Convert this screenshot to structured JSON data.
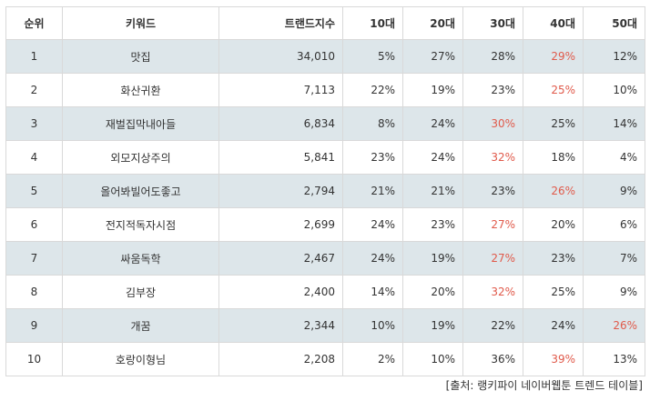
{
  "table": {
    "headers": [
      "순위",
      "키워드",
      "트랜드지수",
      "10대",
      "20대",
      "30대",
      "40대",
      "50대"
    ],
    "rows": [
      {
        "rank": "1",
        "keyword": "맛집",
        "index": "34,010",
        "a10": "5%",
        "a20": "27%",
        "a30": "28%",
        "a40": "29%",
        "a50": "12%",
        "highlight": "a40"
      },
      {
        "rank": "2",
        "keyword": "화산귀환",
        "index": "7,113",
        "a10": "22%",
        "a20": "19%",
        "a30": "23%",
        "a40": "25%",
        "a50": "10%",
        "highlight": "a40"
      },
      {
        "rank": "3",
        "keyword": "재벌집막내아들",
        "index": "6,834",
        "a10": "8%",
        "a20": "24%",
        "a30": "30%",
        "a40": "25%",
        "a50": "14%",
        "highlight": "a30"
      },
      {
        "rank": "4",
        "keyword": "외모지상주의",
        "index": "5,841",
        "a10": "23%",
        "a20": "24%",
        "a30": "32%",
        "a40": "18%",
        "a50": "4%",
        "highlight": "a30"
      },
      {
        "rank": "5",
        "keyword": "올어봐빌어도좋고",
        "index": "2,794",
        "a10": "21%",
        "a20": "21%",
        "a30": "23%",
        "a40": "26%",
        "a50": "9%",
        "highlight": "a40"
      },
      {
        "rank": "6",
        "keyword": "전지적독자시점",
        "index": "2,699",
        "a10": "24%",
        "a20": "23%",
        "a30": "27%",
        "a40": "20%",
        "a50": "6%",
        "highlight": "a30"
      },
      {
        "rank": "7",
        "keyword": "싸움독학",
        "index": "2,467",
        "a10": "24%",
        "a20": "19%",
        "a30": "27%",
        "a40": "23%",
        "a50": "7%",
        "highlight": "a30"
      },
      {
        "rank": "8",
        "keyword": "김부장",
        "index": "2,400",
        "a10": "14%",
        "a20": "20%",
        "a30": "32%",
        "a40": "25%",
        "a50": "9%",
        "highlight": "a30"
      },
      {
        "rank": "9",
        "keyword": "개꿈",
        "index": "2,344",
        "a10": "10%",
        "a20": "19%",
        "a30": "22%",
        "a40": "24%",
        "a50": "26%",
        "highlight": "a50"
      },
      {
        "rank": "10",
        "keyword": "호랑이형님",
        "index": "2,208",
        "a10": "2%",
        "a20": "10%",
        "a30": "36%",
        "a40": "39%",
        "a50": "13%",
        "highlight": "a40"
      }
    ]
  },
  "colors": {
    "highlight": "#e05a4b",
    "row_shade": "#dde6ea",
    "border": "#d9d9d9"
  },
  "source": "[출처: 랭키파이 네이버웹툰 트렌드 테이블]"
}
